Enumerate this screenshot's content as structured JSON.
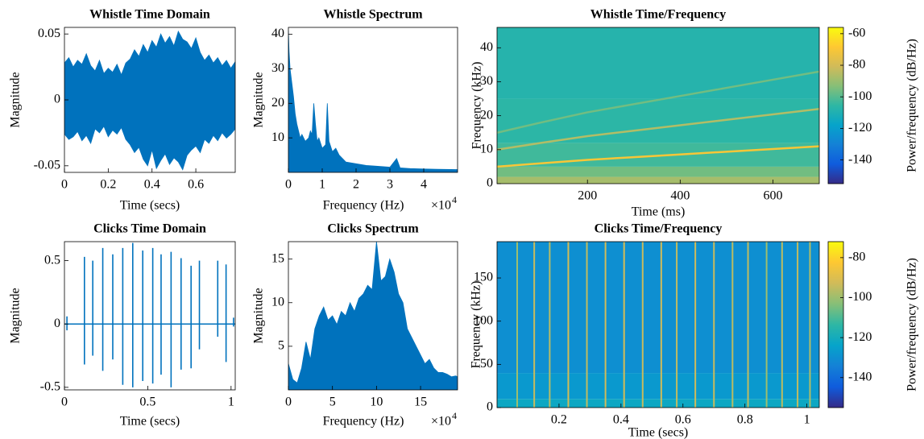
{
  "chart_data": [
    {
      "type": "waveform",
      "title": "Whistle Time Domain",
      "xlabel": "Time (secs)",
      "ylabel": "Magnitude",
      "color": "#0072bd",
      "x": [
        0,
        0.02,
        0.04,
        0.06,
        0.08,
        0.1,
        0.12,
        0.14,
        0.16,
        0.18,
        0.2,
        0.22,
        0.24,
        0.26,
        0.28,
        0.3,
        0.32,
        0.34,
        0.36,
        0.38,
        0.4,
        0.42,
        0.44,
        0.46,
        0.48,
        0.5,
        0.52,
        0.54,
        0.56,
        0.58,
        0.6,
        0.62,
        0.64,
        0.66,
        0.68,
        0.7,
        0.72,
        0.74,
        0.76,
        0.78
      ],
      "upper": [
        0.028,
        0.032,
        0.025,
        0.03,
        0.027,
        0.035,
        0.026,
        0.022,
        0.03,
        0.02,
        0.024,
        0.021,
        0.027,
        0.019,
        0.028,
        0.031,
        0.038,
        0.033,
        0.042,
        0.036,
        0.045,
        0.04,
        0.05,
        0.043,
        0.048,
        0.041,
        0.052,
        0.046,
        0.044,
        0.039,
        0.047,
        0.036,
        0.03,
        0.034,
        0.028,
        0.032,
        0.026,
        0.03,
        0.024,
        0.029
      ],
      "lower": [
        -0.026,
        -0.03,
        -0.028,
        -0.024,
        -0.031,
        -0.027,
        -0.033,
        -0.022,
        -0.025,
        -0.02,
        -0.028,
        -0.023,
        -0.026,
        -0.021,
        -0.03,
        -0.034,
        -0.04,
        -0.036,
        -0.045,
        -0.05,
        -0.038,
        -0.052,
        -0.046,
        -0.041,
        -0.049,
        -0.044,
        -0.047,
        -0.053,
        -0.042,
        -0.038,
        -0.035,
        -0.04,
        -0.03,
        -0.033,
        -0.027,
        -0.031,
        -0.025,
        -0.029,
        -0.026,
        -0.022
      ],
      "xlim": [
        0,
        0.78
      ],
      "xticks": [
        0,
        0.2,
        0.4,
        0.6
      ],
      "ylim": [
        -0.055,
        0.055
      ],
      "yticks": [
        -0.05,
        0,
        0.05
      ]
    },
    {
      "type": "spectrum",
      "title": "Whistle Spectrum",
      "xlabel": "Frequency (Hz)",
      "ylabel": "Magnitude",
      "color": "#0072bd",
      "x_multiplier": "×10",
      "x_exponent": "4",
      "x": [
        0,
        0.02,
        0.05,
        0.1,
        0.15,
        0.2,
        0.25,
        0.3,
        0.35,
        0.4,
        0.5,
        0.6,
        0.65,
        0.7,
        0.75,
        0.8,
        0.85,
        0.9,
        1.0,
        1.1,
        1.15,
        1.2,
        1.3,
        1.4,
        1.5,
        1.7,
        2.0,
        2.3,
        2.6,
        3.0,
        3.2,
        3.3,
        3.6,
        4.0,
        4.4,
        5.0
      ],
      "values": [
        41,
        35,
        30,
        26,
        22,
        17,
        14,
        12,
        10,
        11,
        9,
        10,
        12,
        11,
        20,
        14,
        9,
        10,
        7,
        8,
        20,
        9,
        6,
        7,
        5,
        3,
        2.5,
        2,
        1.8,
        1.5,
        4,
        1.3,
        1.1,
        1,
        0.9,
        0.8
      ],
      "xlim": [
        0,
        5
      ],
      "xticks": [
        0,
        1,
        2,
        3,
        4
      ],
      "ylim": [
        0,
        42
      ],
      "yticks": [
        10,
        20,
        30,
        40
      ]
    },
    {
      "type": "spectrogram",
      "title": "Whistle Time/Frequency",
      "xlabel": "Time (ms)",
      "ylabel": "Frequency (kHz)",
      "colorbar_label": "Power/frequency (dB/Hz)",
      "xlim": [
        5,
        700
      ],
      "xticks": [
        200,
        400,
        600
      ],
      "ylim": [
        0,
        46
      ],
      "yticks": [
        0,
        10,
        20,
        30,
        40
      ],
      "clim": [
        -155,
        -56
      ],
      "cticks": [
        -140,
        -120,
        -100,
        -80,
        -60
      ],
      "bands": {
        "edges": [
          0,
          2,
          5,
          12,
          25,
          46
        ],
        "levels": [
          -88,
          -96,
          -103,
          -106,
          -108
        ]
      },
      "traces": [
        {
          "x": [
            5,
            100,
            200,
            300,
            400,
            500,
            600,
            700
          ],
          "y": [
            5,
            6,
            7,
            7.8,
            8.6,
            9.4,
            10.2,
            11
          ],
          "level": -70
        },
        {
          "x": [
            5,
            100,
            200,
            300,
            400,
            500,
            600,
            700
          ],
          "y": [
            10,
            12,
            14,
            15.6,
            17.2,
            18.8,
            20.4,
            22
          ],
          "level": -86
        },
        {
          "x": [
            5,
            100,
            200,
            300,
            400,
            500,
            600,
            700
          ],
          "y": [
            15,
            18,
            21,
            23.4,
            25.8,
            28.2,
            30.6,
            33
          ],
          "level": -96
        }
      ]
    },
    {
      "type": "impulses",
      "title": "Clicks Time Domain",
      "xlabel": "Time (secs)",
      "ylabel": "Magnitude",
      "color": "#0072bd",
      "times": [
        0.015,
        0.12,
        0.17,
        0.23,
        0.29,
        0.35,
        0.41,
        0.47,
        0.53,
        0.58,
        0.64,
        0.7,
        0.76,
        0.81,
        0.92,
        0.97,
        1.015
      ],
      "peaks": [
        0.06,
        0.53,
        0.5,
        0.6,
        0.55,
        0.6,
        0.64,
        0.58,
        0.6,
        0.55,
        0.57,
        0.52,
        0.46,
        0.5,
        0.5,
        0.47,
        0.05
      ],
      "troughs": [
        -0.05,
        -0.32,
        -0.25,
        -0.37,
        -0.28,
        -0.48,
        -0.5,
        -0.45,
        -0.47,
        -0.4,
        -0.5,
        -0.36,
        -0.35,
        -0.2,
        -0.1,
        -0.3,
        -0.02
      ],
      "xlim": [
        0,
        1.025
      ],
      "xticks": [
        0,
        0.5,
        1
      ],
      "ylim": [
        -0.52,
        0.65
      ],
      "yticks": [
        -0.5,
        0,
        0.5
      ]
    },
    {
      "type": "spectrum",
      "title": "Clicks Spectrum",
      "xlabel": "Frequency (Hz)",
      "ylabel": "Magnitude",
      "color": "#0072bd",
      "x_multiplier": "×10",
      "x_exponent": "4",
      "x": [
        0,
        0.5,
        1,
        1.5,
        2,
        2.5,
        3,
        3.5,
        4,
        4.5,
        5,
        5.5,
        6,
        6.5,
        7,
        7.5,
        8,
        8.5,
        9,
        9.5,
        10,
        10.5,
        11,
        11.5,
        12,
        12.5,
        13,
        13.5,
        14,
        14.5,
        15,
        15.5,
        16,
        16.5,
        17,
        17.5,
        18,
        18.5,
        19,
        19.2
      ],
      "values": [
        3,
        1.2,
        0.8,
        2.5,
        5.5,
        3.5,
        7,
        8.5,
        9.5,
        8,
        8.5,
        7.5,
        9,
        8.5,
        10,
        9,
        10.5,
        11,
        12,
        11.5,
        17,
        12.5,
        13,
        15,
        13.5,
        11,
        10,
        7,
        6,
        5,
        4,
        3,
        3.5,
        2.5,
        2,
        2,
        1.8,
        1.5,
        1.6,
        1.5
      ],
      "xlim": [
        0,
        19.2
      ],
      "xticks": [
        0,
        5,
        10,
        15
      ],
      "ylim": [
        0,
        17
      ],
      "yticks": [
        5,
        10,
        15
      ]
    },
    {
      "type": "spectrogram",
      "title": "Clicks Time/Frequency",
      "xlabel": "Time (secs)",
      "ylabel": "Frequency (kHz)",
      "colorbar_label": "Power/frequency (dB/Hz)",
      "xlim": [
        0,
        1.04
      ],
      "xticks": [
        0.2,
        0.4,
        0.6,
        0.8,
        1
      ],
      "ylim": [
        0,
        192
      ],
      "yticks": [
        0,
        50,
        100,
        150
      ],
      "clim": [
        -155,
        -72
      ],
      "cticks": [
        -140,
        -120,
        -100,
        -80
      ],
      "bands": {
        "edges": [
          0,
          10,
          40,
          192
        ],
        "levels": [
          -122,
          -127,
          -130
        ]
      },
      "click_times": [
        0.065,
        0.12,
        0.17,
        0.23,
        0.29,
        0.35,
        0.41,
        0.47,
        0.53,
        0.58,
        0.64,
        0.7,
        0.76,
        0.81,
        0.87,
        0.92,
        0.97,
        1.01
      ],
      "click_levels": [
        -100,
        -94,
        -96,
        -92,
        -95,
        -93,
        -92,
        -94,
        -93,
        -95,
        -93,
        -94,
        -96,
        -95,
        -100,
        -96,
        -95,
        -97
      ]
    }
  ]
}
